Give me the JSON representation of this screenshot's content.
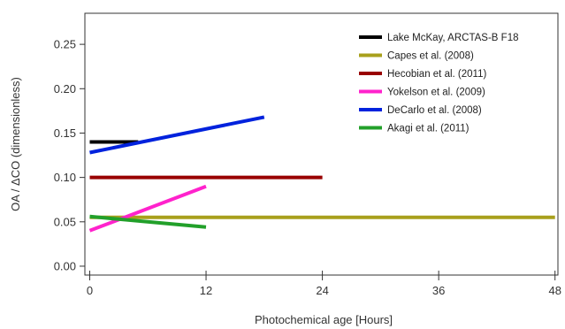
{
  "chart_data": {
    "type": "line",
    "title": "",
    "xlabel": "Photochemical age [Hours]",
    "ylabel": "OA / ΔCO (dimensionless)",
    "xlim": [
      -0.5,
      48.3
    ],
    "ylim": [
      -0.01,
      0.285
    ],
    "xticks": [
      0,
      12,
      24,
      36,
      48
    ],
    "yticks": [
      0.0,
      0.05,
      0.1,
      0.15,
      0.2,
      0.25
    ],
    "ytick_labels": [
      "0.00",
      "0.05",
      "0.10",
      "0.15",
      "0.20",
      "0.25"
    ],
    "grid": false,
    "legend_position": "top-right",
    "series": [
      {
        "name": "Lake McKay, ARCTAS-B F18",
        "color": "#000000",
        "x": [
          0,
          5
        ],
        "y": [
          0.14,
          0.14
        ]
      },
      {
        "name": "Capes et al. (2008)",
        "color": "#a8a01c",
        "x": [
          0,
          48
        ],
        "y": [
          0.055,
          0.055
        ]
      },
      {
        "name": "Hecobian et al. (2011)",
        "color": "#990000",
        "x": [
          0,
          24
        ],
        "y": [
          0.1,
          0.1
        ]
      },
      {
        "name": "Yokelson et al. (2009)",
        "color": "#ff22cc",
        "x": [
          0,
          12
        ],
        "y": [
          0.04,
          0.09
        ]
      },
      {
        "name": "DeCarlo et al. (2008)",
        "color": "#0022dd",
        "x": [
          0,
          18
        ],
        "y": [
          0.128,
          0.168
        ]
      },
      {
        "name": "Akagi et al. (2011)",
        "color": "#22a02a",
        "x": [
          0,
          12
        ],
        "y": [
          0.056,
          0.044
        ]
      }
    ]
  }
}
